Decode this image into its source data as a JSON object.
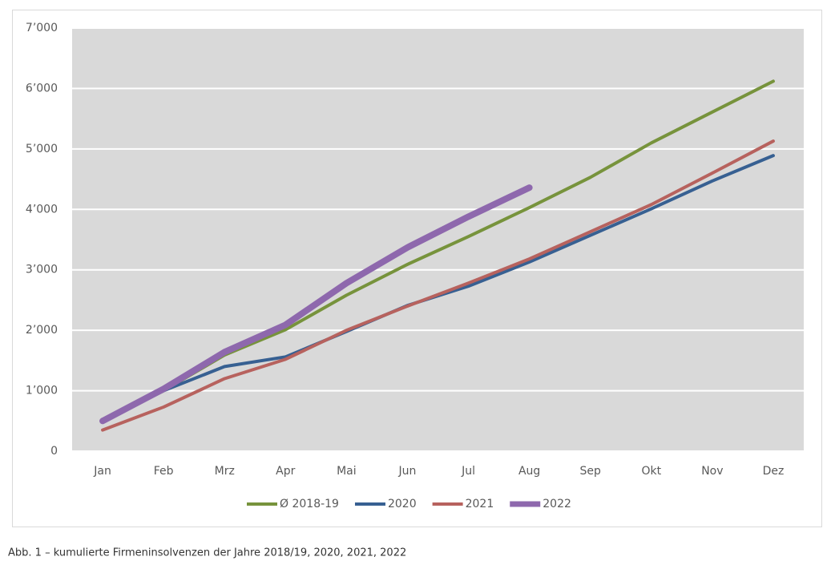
{
  "chart_data": {
    "type": "line",
    "categories": [
      "Jan",
      "Feb",
      "Mrz",
      "Apr",
      "Mai",
      "Jun",
      "Jul",
      "Aug",
      "Sep",
      "Okt",
      "Nov",
      "Dez"
    ],
    "series": [
      {
        "name": "Ø 2018-19",
        "color": "#77933c",
        "values": [
          500,
          1000,
          1590,
          2010,
          2580,
          3090,
          3550,
          4030,
          4530,
          5100,
          5610,
          6120
        ]
      },
      {
        "name": "2020",
        "color": "#376092",
        "values": [
          500,
          1000,
          1400,
          1560,
          1980,
          2410,
          2730,
          3130,
          3570,
          4010,
          4470,
          4890
        ]
      },
      {
        "name": "2021",
        "color": "#b7625e",
        "values": [
          350,
          730,
          1200,
          1520,
          2000,
          2400,
          2780,
          3180,
          3630,
          4080,
          4600,
          5130
        ]
      },
      {
        "name": "2022",
        "color": "#8e68ad",
        "values": [
          500,
          1030,
          1640,
          2090,
          2780,
          3370,
          3880,
          4360,
          null,
          null,
          null,
          null
        ]
      }
    ],
    "ylim": [
      0,
      7000
    ],
    "yticks": [
      0,
      {
        "value": 1000,
        "label": "1’000"
      },
      {
        "value": 2000,
        "label": "2’000"
      },
      {
        "value": 3000,
        "label": "3’000"
      },
      {
        "value": 4000,
        "label": "4’000"
      },
      {
        "value": 5000,
        "label": "5’000"
      },
      {
        "value": 6000,
        "label": "6’000"
      },
      {
        "value": 7000,
        "label": "7’000"
      }
    ],
    "grid": true,
    "caption": "Abb. 1 – kumulierte Firmeninsolvenzen der Jahre 2018/19, 2020, 2021, 2022"
  }
}
